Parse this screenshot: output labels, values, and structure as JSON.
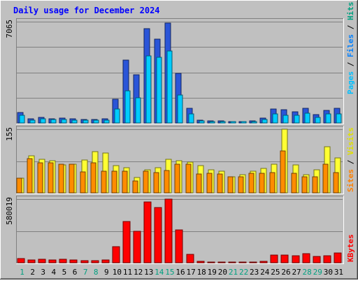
{
  "chart_data": [
    {
      "type": "bar",
      "title": "Daily usage for December 2024",
      "ylabel_max": "7065",
      "legend": [
        "Pages",
        "Files",
        "Hits"
      ],
      "categories": [
        "1",
        "2",
        "3",
        "4",
        "5",
        "6",
        "7",
        "8",
        "9",
        "10",
        "11",
        "12",
        "13",
        "14",
        "15",
        "16",
        "17",
        "18",
        "19",
        "20",
        "21",
        "22",
        "23",
        "24",
        "25",
        "26",
        "27",
        "28",
        "29",
        "30",
        "31"
      ],
      "weekend_days": [
        "1",
        "7",
        "8",
        "14",
        "15",
        "21",
        "22",
        "28",
        "29"
      ],
      "ylim": [
        0,
        7065
      ],
      "series": [
        {
          "name": "Hits",
          "color": "#2a55d8",
          "values": [
            710,
            283,
            378,
            307,
            330,
            283,
            259,
            259,
            283,
            1650,
            4390,
            3340,
            6560,
            5830,
            6960,
            3460,
            1000,
            213,
            165,
            165,
            118,
            118,
            165,
            330,
            960,
            915,
            800,
            1030,
            590,
            870,
            1030
          ]
        },
        {
          "name": "Files",
          "color": "#00ccff",
          "values": [
            520,
            213,
            307,
            236,
            260,
            213,
            189,
            189,
            213,
            960,
            2220,
            1770,
            4700,
            4600,
            5040,
            1960,
            640,
            142,
            118,
            118,
            94,
            94,
            118,
            236,
            610,
            560,
            520,
            660,
            380,
            610,
            610
          ]
        },
        {
          "name": "Pages",
          "color": "#00ccff",
          "values": [
            0,
            0,
            0,
            0,
            0,
            0,
            0,
            0,
            0,
            0,
            0,
            0,
            0,
            0,
            0,
            0,
            0,
            0,
            0,
            0,
            0,
            0,
            0,
            0,
            0,
            0,
            0,
            0,
            0,
            0,
            0
          ]
        }
      ]
    },
    {
      "type": "bar",
      "ylabel_max": "155",
      "legend": [
        "Sites",
        "Visits"
      ],
      "categories": [
        "1",
        "2",
        "3",
        "4",
        "5",
        "6",
        "7",
        "8",
        "9",
        "10",
        "11",
        "12",
        "13",
        "14",
        "15",
        "16",
        "17",
        "18",
        "19",
        "20",
        "21",
        "22",
        "23",
        "24",
        "25",
        "26",
        "27",
        "28",
        "29",
        "30",
        "31"
      ],
      "ylim": [
        0,
        155
      ],
      "series": [
        {
          "name": "Visits",
          "color": "#ffff33",
          "values": [
            35,
            91,
            82,
            78,
            68,
            70,
            80,
            100,
            97,
            67,
            61,
            38,
            56,
            62,
            82,
            78,
            75,
            66,
            57,
            52,
            40,
            44,
            53,
            59,
            70,
            155,
            68,
            45,
            57,
            112,
            85
          ]
        },
        {
          "name": "Sites",
          "color": "#ff8c00",
          "values": [
            35,
            84,
            74,
            73,
            69,
            70,
            51,
            73,
            53,
            53,
            53,
            29,
            52,
            50,
            54,
            70,
            70,
            46,
            47,
            46,
            40,
            40,
            48,
            48,
            50,
            102,
            48,
            40,
            40,
            70,
            50
          ]
        }
      ]
    },
    {
      "type": "bar",
      "ylabel_max": "580019",
      "legend": [
        "KBytes"
      ],
      "categories": [
        "1",
        "2",
        "3",
        "4",
        "5",
        "6",
        "7",
        "8",
        "9",
        "10",
        "11",
        "12",
        "13",
        "14",
        "15",
        "16",
        "17",
        "18",
        "19",
        "20",
        "21",
        "22",
        "23",
        "24",
        "25",
        "26",
        "27",
        "28",
        "29",
        "30",
        "31"
      ],
      "ylim": [
        0,
        580019
      ],
      "series": [
        {
          "name": "KBytes",
          "color": "#ff0000",
          "values": [
            36000,
            24000,
            30000,
            24000,
            30000,
            24000,
            18000,
            18000,
            24000,
            145000,
            373000,
            284000,
            552000,
            502000,
            580019,
            300000,
            78000,
            12000,
            6000,
            6000,
            6000,
            6000,
            6000,
            12000,
            72000,
            72000,
            66000,
            84000,
            60000,
            66000,
            90000
          ]
        }
      ]
    }
  ]
}
